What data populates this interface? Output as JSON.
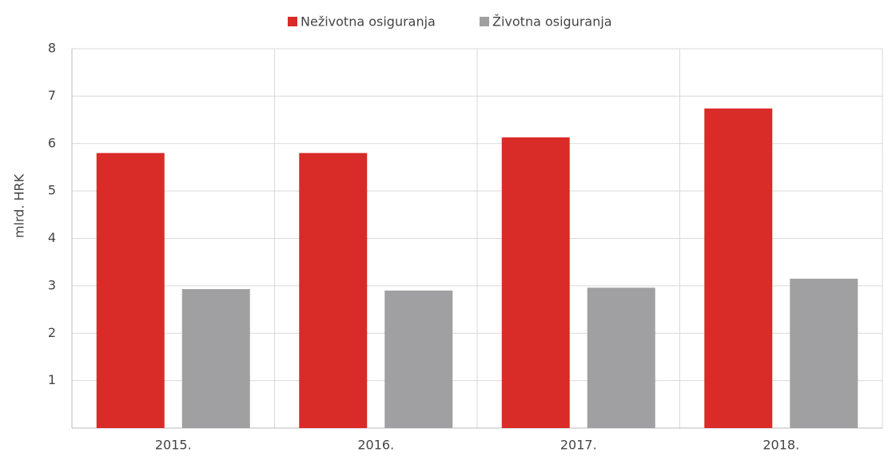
{
  "chart_data": {
    "type": "bar",
    "y_label": "mlrd. HRK",
    "categories": [
      "2015.",
      "2016.",
      "2017.",
      "2018."
    ],
    "series": [
      {
        "name": "Neživotna osiguranja",
        "color": "#d92b27",
        "values": [
          5.8,
          5.8,
          6.13,
          6.74
        ]
      },
      {
        "name": "Životna osiguranja",
        "color": "#a0a0a2",
        "values": [
          2.93,
          2.9,
          2.96,
          3.15
        ]
      }
    ],
    "ylim": [
      0,
      8
    ],
    "yticks": [
      1,
      2,
      3,
      4,
      5,
      6,
      7,
      8
    ],
    "grid": true,
    "legend": "top"
  }
}
